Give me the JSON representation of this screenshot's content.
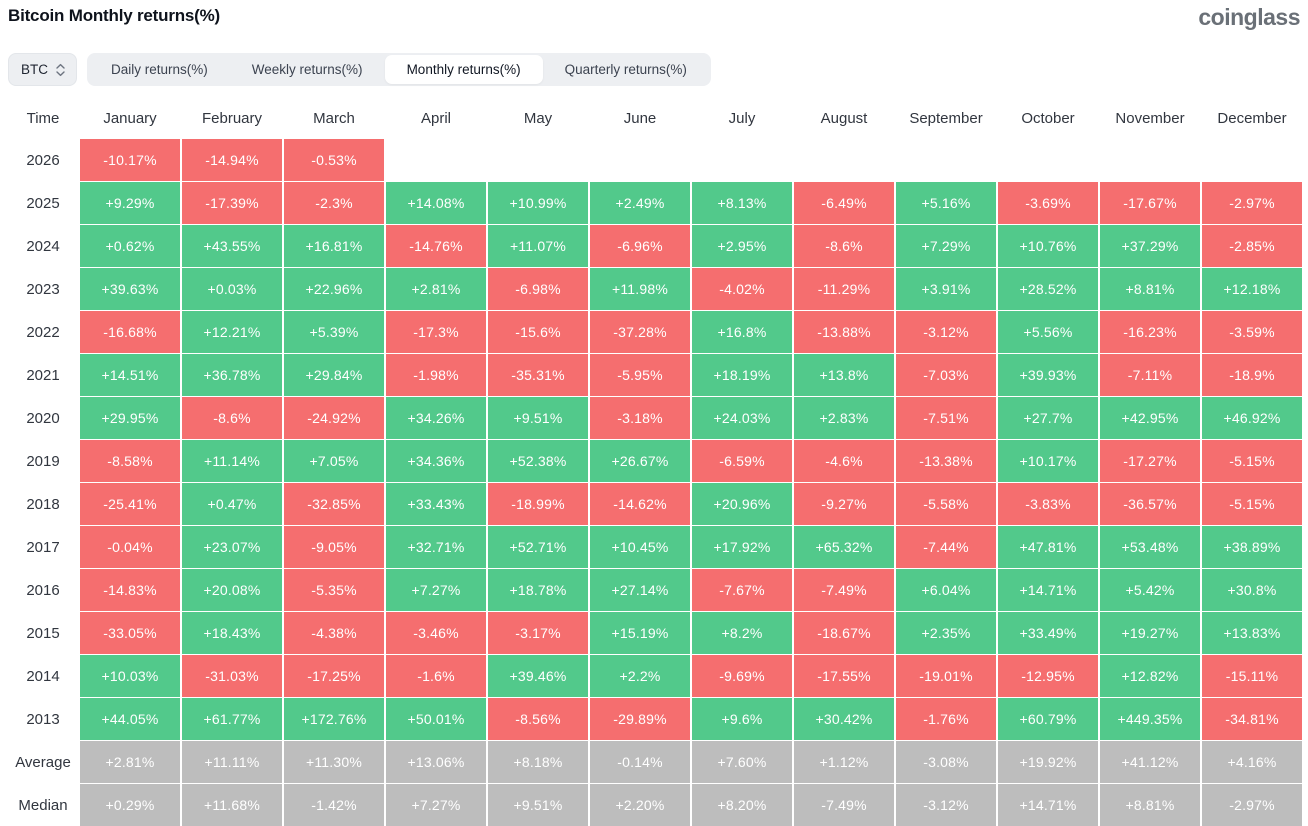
{
  "page": {
    "title": "Bitcoin Monthly returns(%)",
    "logo_text": "coinglass"
  },
  "controls": {
    "symbol_selector": {
      "label": "BTC",
      "icon": "unfold-more-icon"
    },
    "tabs": [
      {
        "label": "Daily returns(%)",
        "active": false
      },
      {
        "label": "Weekly returns(%)",
        "active": false
      },
      {
        "label": "Monthly returns(%)",
        "active": true
      },
      {
        "label": "Quarterly returns(%)",
        "active": false
      }
    ]
  },
  "colors": {
    "positive": "#52c98b",
    "negative": "#f56e6f",
    "neutral": "#bdbdbd"
  },
  "table": {
    "columns": [
      "Time",
      "January",
      "February",
      "March",
      "April",
      "May",
      "June",
      "July",
      "August",
      "September",
      "October",
      "November",
      "December"
    ],
    "rows": [
      {
        "label": "2026",
        "neutral": false,
        "values": [
          "-10.17%",
          "-14.94%",
          "-0.53%",
          "",
          "",
          "",
          "",
          "",
          "",
          "",
          "",
          ""
        ]
      },
      {
        "label": "2025",
        "neutral": false,
        "values": [
          "+9.29%",
          "-17.39%",
          "-2.3%",
          "+14.08%",
          "+10.99%",
          "+2.49%",
          "+8.13%",
          "-6.49%",
          "+5.16%",
          "-3.69%",
          "-17.67%",
          "-2.97%"
        ]
      },
      {
        "label": "2024",
        "neutral": false,
        "values": [
          "+0.62%",
          "+43.55%",
          "+16.81%",
          "-14.76%",
          "+11.07%",
          "-6.96%",
          "+2.95%",
          "-8.6%",
          "+7.29%",
          "+10.76%",
          "+37.29%",
          "-2.85%"
        ]
      },
      {
        "label": "2023",
        "neutral": false,
        "values": [
          "+39.63%",
          "+0.03%",
          "+22.96%",
          "+2.81%",
          "-6.98%",
          "+11.98%",
          "-4.02%",
          "-11.29%",
          "+3.91%",
          "+28.52%",
          "+8.81%",
          "+12.18%"
        ]
      },
      {
        "label": "2022",
        "neutral": false,
        "values": [
          "-16.68%",
          "+12.21%",
          "+5.39%",
          "-17.3%",
          "-15.6%",
          "-37.28%",
          "+16.8%",
          "-13.88%",
          "-3.12%",
          "+5.56%",
          "-16.23%",
          "-3.59%"
        ]
      },
      {
        "label": "2021",
        "neutral": false,
        "values": [
          "+14.51%",
          "+36.78%",
          "+29.84%",
          "-1.98%",
          "-35.31%",
          "-5.95%",
          "+18.19%",
          "+13.8%",
          "-7.03%",
          "+39.93%",
          "-7.11%",
          "-18.9%"
        ]
      },
      {
        "label": "2020",
        "neutral": false,
        "values": [
          "+29.95%",
          "-8.6%",
          "-24.92%",
          "+34.26%",
          "+9.51%",
          "-3.18%",
          "+24.03%",
          "+2.83%",
          "-7.51%",
          "+27.7%",
          "+42.95%",
          "+46.92%"
        ]
      },
      {
        "label": "2019",
        "neutral": false,
        "values": [
          "-8.58%",
          "+11.14%",
          "+7.05%",
          "+34.36%",
          "+52.38%",
          "+26.67%",
          "-6.59%",
          "-4.6%",
          "-13.38%",
          "+10.17%",
          "-17.27%",
          "-5.15%"
        ]
      },
      {
        "label": "2018",
        "neutral": false,
        "values": [
          "-25.41%",
          "+0.47%",
          "-32.85%",
          "+33.43%",
          "-18.99%",
          "-14.62%",
          "+20.96%",
          "-9.27%",
          "-5.58%",
          "-3.83%",
          "-36.57%",
          "-5.15%"
        ]
      },
      {
        "label": "2017",
        "neutral": false,
        "values": [
          "-0.04%",
          "+23.07%",
          "-9.05%",
          "+32.71%",
          "+52.71%",
          "+10.45%",
          "+17.92%",
          "+65.32%",
          "-7.44%",
          "+47.81%",
          "+53.48%",
          "+38.89%"
        ]
      },
      {
        "label": "2016",
        "neutral": false,
        "values": [
          "-14.83%",
          "+20.08%",
          "-5.35%",
          "+7.27%",
          "+18.78%",
          "+27.14%",
          "-7.67%",
          "-7.49%",
          "+6.04%",
          "+14.71%",
          "+5.42%",
          "+30.8%"
        ]
      },
      {
        "label": "2015",
        "neutral": false,
        "values": [
          "-33.05%",
          "+18.43%",
          "-4.38%",
          "-3.46%",
          "-3.17%",
          "+15.19%",
          "+8.2%",
          "-18.67%",
          "+2.35%",
          "+33.49%",
          "+19.27%",
          "+13.83%"
        ]
      },
      {
        "label": "2014",
        "neutral": false,
        "values": [
          "+10.03%",
          "-31.03%",
          "-17.25%",
          "-1.6%",
          "+39.46%",
          "+2.2%",
          "-9.69%",
          "-17.55%",
          "-19.01%",
          "-12.95%",
          "+12.82%",
          "-15.11%"
        ]
      },
      {
        "label": "2013",
        "neutral": false,
        "values": [
          "+44.05%",
          "+61.77%",
          "+172.76%",
          "+50.01%",
          "-8.56%",
          "-29.89%",
          "+9.6%",
          "+30.42%",
          "-1.76%",
          "+60.79%",
          "+449.35%",
          "-34.81%"
        ]
      },
      {
        "label": "Average",
        "neutral": true,
        "values": [
          "+2.81%",
          "+11.11%",
          "+11.30%",
          "+13.06%",
          "+8.18%",
          "-0.14%",
          "+7.60%",
          "+1.12%",
          "-3.08%",
          "+19.92%",
          "+41.12%",
          "+4.16%"
        ]
      },
      {
        "label": "Median",
        "neutral": true,
        "values": [
          "+0.29%",
          "+11.68%",
          "-1.42%",
          "+7.27%",
          "+9.51%",
          "+2.20%",
          "+8.20%",
          "-7.49%",
          "-3.12%",
          "+14.71%",
          "+8.81%",
          "-2.97%"
        ]
      }
    ]
  }
}
